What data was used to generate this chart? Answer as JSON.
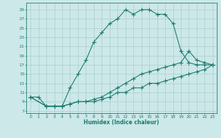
{
  "xlabel": "Humidex (Indice chaleur)",
  "background_color": "#cce8e8",
  "grid_color": "#aacccc",
  "line_color": "#1a7a6e",
  "xlim": [
    -0.5,
    23.5
  ],
  "ylim": [
    6.5,
    30.5
  ],
  "xticks": [
    0,
    1,
    2,
    3,
    4,
    5,
    6,
    7,
    8,
    9,
    10,
    11,
    12,
    13,
    14,
    15,
    16,
    17,
    18,
    19,
    20,
    21,
    22,
    23
  ],
  "yticks": [
    7,
    9,
    11,
    13,
    15,
    17,
    19,
    21,
    23,
    25,
    27,
    29
  ],
  "line1_x": [
    0,
    1,
    2,
    3,
    4,
    5,
    6,
    7,
    8,
    9,
    10,
    11,
    12,
    13,
    14,
    15,
    16,
    17,
    18,
    19,
    20,
    21,
    22,
    23
  ],
  "line1_y": [
    10,
    10,
    8,
    8,
    8,
    12,
    15,
    18,
    22,
    24,
    26,
    27,
    29,
    28,
    29,
    29,
    28,
    28,
    26,
    20,
    17.5,
    17,
    17,
    17
  ],
  "line2_x": [
    0,
    2,
    3,
    4,
    5,
    6,
    7,
    8,
    9,
    10,
    11,
    12,
    13,
    14,
    15,
    16,
    17,
    18,
    19,
    20,
    21,
    22,
    23
  ],
  "line2_y": [
    10,
    8,
    8,
    8,
    8.5,
    9,
    9,
    9.5,
    10,
    11,
    12,
    13,
    14,
    15,
    15.5,
    16,
    16.5,
    17,
    17.5,
    20,
    18,
    17.5,
    17
  ],
  "line3_x": [
    0,
    2,
    3,
    4,
    5,
    6,
    7,
    8,
    9,
    10,
    11,
    12,
    13,
    14,
    15,
    16,
    17,
    18,
    19,
    20,
    21,
    22,
    23
  ],
  "line3_y": [
    10,
    8,
    8,
    8,
    8.5,
    9,
    9,
    9,
    9.5,
    10,
    11,
    11,
    12,
    12,
    13,
    13,
    13.5,
    14,
    14.5,
    15,
    15.5,
    16,
    17
  ],
  "marker": "+",
  "marker_size": 4,
  "linewidth": 0.8
}
